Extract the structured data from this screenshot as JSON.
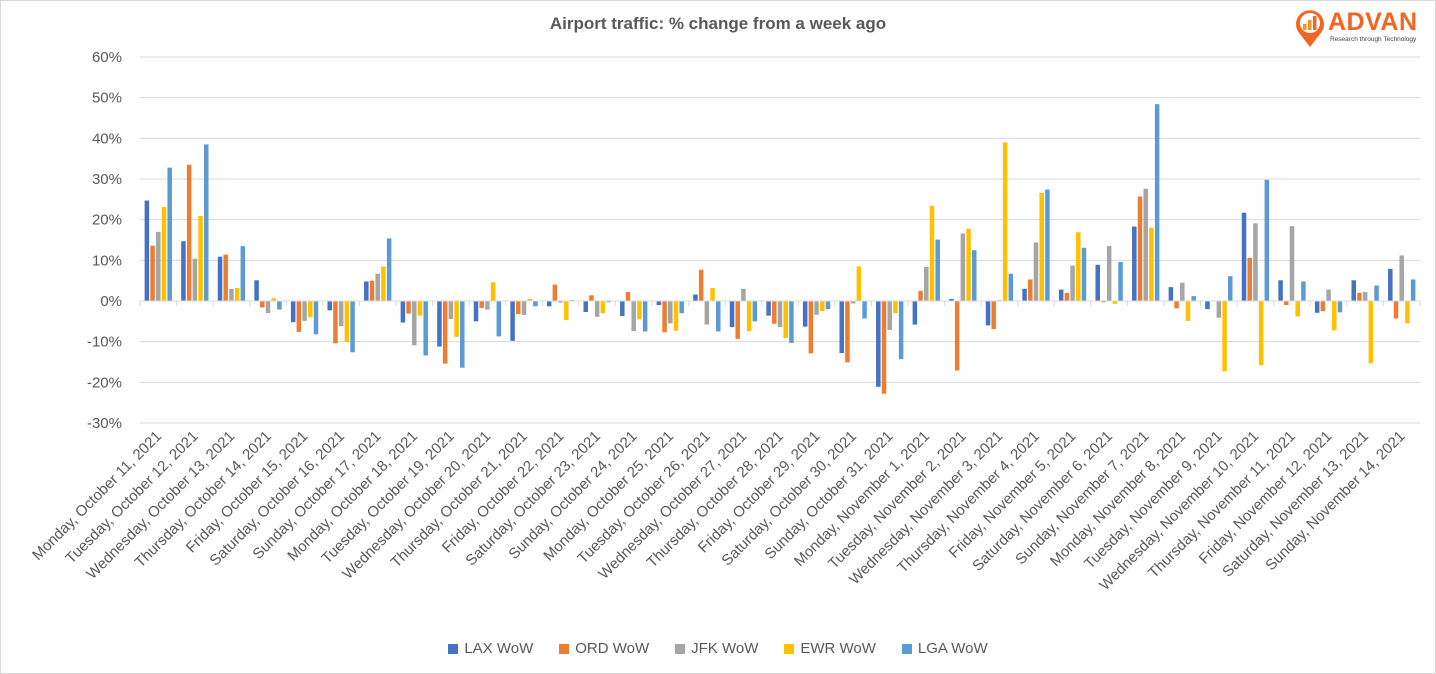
{
  "brand": {
    "name": "ADVAN",
    "tagline": "Research through Technology",
    "color": "#f26522"
  },
  "chart_data": {
    "type": "bar",
    "title": "Airport traffic: % change from a week ago",
    "xlabel": "",
    "ylabel": "",
    "ylim": [
      -30,
      60
    ],
    "yticks": [
      -30,
      -20,
      -10,
      0,
      10,
      20,
      30,
      40,
      50,
      60
    ],
    "ytick_labels": [
      "-30%",
      "-20%",
      "-10%",
      "0%",
      "10%",
      "20%",
      "30%",
      "40%",
      "50%",
      "60%"
    ],
    "grid": true,
    "legend_position": "bottom",
    "categories": [
      "Monday, October 11, 2021",
      "Tuesday, October 12, 2021",
      "Wednesday, October 13, 2021",
      "Thursday, October 14, 2021",
      "Friday, October 15, 2021",
      "Saturday, October 16, 2021",
      "Sunday, October 17, 2021",
      "Monday, October 18, 2021",
      "Tuesday, October 19, 2021",
      "Wednesday, October 20, 2021",
      "Thursday, October 21, 2021",
      "Friday, October 22, 2021",
      "Saturday, October 23, 2021",
      "Sunday, October 24, 2021",
      "Monday, October 25, 2021",
      "Tuesday, October 26, 2021",
      "Wednesday, October 27, 2021",
      "Thursday, October 28, 2021",
      "Friday, October 29, 2021",
      "Saturday, October 30, 2021",
      "Sunday, October 31, 2021",
      "Monday, November 1, 2021",
      "Tuesday, November 2, 2021",
      "Wednesday, November 3, 2021",
      "Thursday, November 4, 2021",
      "Friday, November 5, 2021",
      "Saturday, November 6, 2021",
      "Sunday, November 7, 2021",
      "Monday, November 8, 2021",
      "Tuesday, November 9, 2021",
      "Wednesday, November 10, 2021",
      "Thursday, November 11, 2021",
      "Friday, November 12, 2021",
      "Saturday, November 13, 2021",
      "Sunday, November 14, 2021"
    ],
    "series": [
      {
        "name": "LAX WoW",
        "color": "#4472c4",
        "values": [
          24.7,
          14.7,
          10.9,
          5.1,
          -5.2,
          -2.3,
          4.8,
          -5.3,
          -11.2,
          -5.0,
          -9.8,
          -1.3,
          -2.7,
          -3.7,
          -1.0,
          1.6,
          -6.4,
          -3.6,
          -6.3,
          -12.8,
          -21.1,
          -5.8,
          0.5,
          -6.0,
          3.0,
          2.8,
          8.9,
          18.3,
          3.4,
          -2.0,
          21.7,
          5.1,
          -2.9,
          5.1,
          7.9
        ]
      },
      {
        "name": "ORD WoW",
        "color": "#ed7d31",
        "values": [
          13.6,
          33.5,
          11.4,
          -1.6,
          -7.6,
          -10.4,
          5.0,
          -3.1,
          -15.4,
          -1.7,
          -3.2,
          4.0,
          1.4,
          2.2,
          -7.7,
          7.7,
          -9.3,
          -5.6,
          -12.9,
          -15.1,
          -22.8,
          2.5,
          -17.1,
          -6.9,
          5.3,
          2.0,
          -0.3,
          25.7,
          -1.8,
          0.0,
          10.6,
          -1.0,
          -2.5,
          2.0,
          -4.3
        ]
      },
      {
        "name": "JFK WoW",
        "color": "#a5a5a5",
        "values": [
          17.0,
          10.4,
          3.0,
          -3.0,
          -4.9,
          -6.2,
          6.7,
          -10.9,
          -4.4,
          -2.1,
          -3.4,
          -0.4,
          -3.9,
          -7.4,
          -5.5,
          -5.8,
          3.0,
          -6.4,
          -3.4,
          -0.6,
          -7.1,
          8.4,
          16.6,
          0.2,
          14.4,
          8.7,
          13.5,
          27.6,
          4.5,
          -4.1,
          19.1,
          18.4,
          2.8,
          2.2,
          11.2
        ]
      },
      {
        "name": "EWR WoW",
        "color": "#ffc000",
        "values": [
          23.1,
          20.9,
          3.2,
          0.7,
          -4.0,
          -10.1,
          8.5,
          -3.6,
          -8.8,
          4.6,
          0.5,
          -4.7,
          -3.0,
          -4.5,
          -7.3,
          3.2,
          -7.4,
          -9.1,
          -2.5,
          8.5,
          -3.0,
          23.4,
          17.8,
          39.0,
          26.6,
          16.9,
          -0.7,
          18.0,
          -4.9,
          -17.3,
          -15.8,
          -3.8,
          -7.2,
          -15.3,
          -5.5
        ]
      },
      {
        "name": "LGA WoW",
        "color": "#5b9bd5",
        "values": [
          32.8,
          38.5,
          13.5,
          -2.1,
          -8.2,
          -12.6,
          15.4,
          -13.4,
          -16.4,
          -8.7,
          -1.3,
          0.2,
          -0.3,
          -7.5,
          -3.0,
          -7.5,
          -5.0,
          -10.3,
          -2.0,
          -4.3,
          -14.3,
          15.1,
          12.5,
          6.7,
          27.4,
          13.1,
          9.6,
          48.4,
          1.2,
          6.1,
          29.8,
          4.8,
          -2.8,
          3.8,
          5.3
        ]
      }
    ]
  }
}
